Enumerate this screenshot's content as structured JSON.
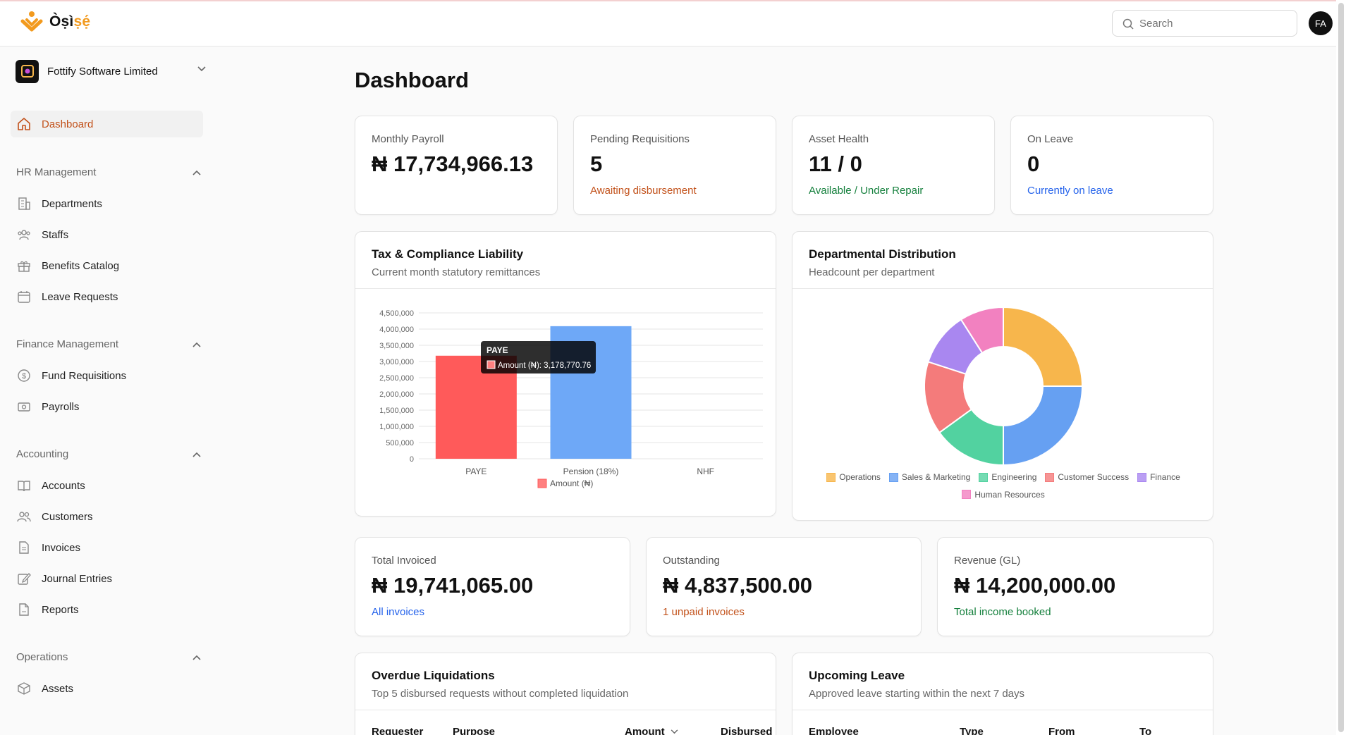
{
  "app": {
    "logo_text_a": "Òṣì",
    "logo_text_b": "ṣẹ́",
    "search_placeholder": "Search",
    "avatar_initials": "FA"
  },
  "sidebar": {
    "company": "Fottify Software Limited",
    "dashboard": "Dashboard",
    "hr_title": "HR Management",
    "hr_items": [
      "Departments",
      "Staffs",
      "Benefits Catalog",
      "Leave Requests"
    ],
    "finance_title": "Finance Management",
    "finance_items": [
      "Fund Requisitions",
      "Payrolls"
    ],
    "accounting_title": "Accounting",
    "accounting_items": [
      "Accounts",
      "Customers",
      "Invoices",
      "Journal Entries",
      "Reports"
    ],
    "operations_title": "Operations",
    "operations_items": [
      "Assets"
    ]
  },
  "page": {
    "title": "Dashboard"
  },
  "stats": [
    {
      "label": "Monthly Payroll",
      "value": "₦ 17,734,966.13",
      "sub": ""
    },
    {
      "label": "Pending Requisitions",
      "value": "5",
      "sub": "Awaiting disbursement"
    },
    {
      "label": "Asset Health",
      "value": "11 / 0",
      "sub": "Available / Under Repair"
    },
    {
      "label": "On Leave",
      "value": "0",
      "sub": "Currently on leave"
    }
  ],
  "tax_card": {
    "title": "Tax & Compliance Liability",
    "subtitle": "Current month statutory remittances"
  },
  "dept_card": {
    "title": "Departmental Distribution",
    "subtitle": "Headcount per department"
  },
  "finance_stats": [
    {
      "label": "Total Invoiced",
      "value": "₦ 19,741,065.00",
      "sub": "All invoices"
    },
    {
      "label": "Outstanding",
      "value": "₦ 4,837,500.00",
      "sub": "1 unpaid invoices"
    },
    {
      "label": "Revenue (GL)",
      "value": "₦ 14,200,000.00",
      "sub": "Total income booked"
    }
  ],
  "overdue": {
    "title": "Overdue Liquidations",
    "subtitle": "Top 5 disbursed requests without completed liquidation",
    "columns": [
      "Requester",
      "Purpose",
      "Amount",
      "Disbursed"
    ]
  },
  "upcoming": {
    "title": "Upcoming Leave",
    "subtitle": "Approved leave starting within the next 7 days",
    "columns": [
      "Employee",
      "Type",
      "From",
      "To"
    ]
  },
  "chart_data": [
    {
      "type": "bar",
      "categories": [
        "PAYE",
        "Pension (18%)",
        "NHF"
      ],
      "series": [
        {
          "name": "Amount (₦)",
          "values": [
            3178770.76,
            4090000,
            0
          ],
          "colors": [
            "#ff5a5a",
            "#6ea8f7",
            "#6ea8f7"
          ]
        }
      ],
      "yticks": [
        "4,500,000",
        "4,000,000",
        "3,500,000",
        "3,000,000",
        "2,500,000",
        "2,000,000",
        "1,500,000",
        "1,000,000",
        "500,000",
        "0"
      ],
      "ylim": [
        0,
        4500000
      ],
      "grid": true,
      "legend": "bottom",
      "tooltip": {
        "title": "PAYE",
        "text": "Amount (₦): 3,178,770.76"
      }
    },
    {
      "type": "pie",
      "categories": [
        "Operations",
        "Sales & Marketing",
        "Engineering",
        "Customer Success",
        "Finance",
        "Human Resources"
      ],
      "values": [
        25,
        25,
        15,
        15,
        11,
        9
      ],
      "colors": [
        "#f7b64c",
        "#66a0f2",
        "#52d2a0",
        "#f47b7b",
        "#a987f0",
        "#f281c0"
      ],
      "legend": "bottom"
    }
  ]
}
